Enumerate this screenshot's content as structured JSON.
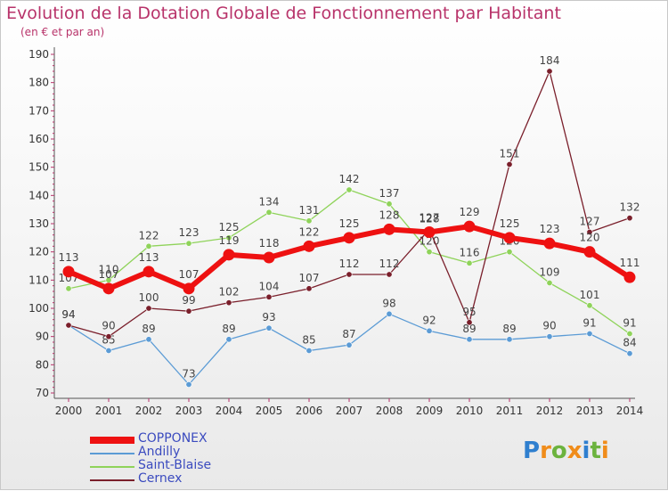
{
  "title": "Evolution de la Dotation Globale de Fonctionnement par Habitant",
  "subtitle": "(en € et par an)",
  "brand": {
    "letters": [
      "P",
      "r",
      "o",
      "x",
      "i",
      "t",
      "i"
    ],
    "colors": [
      "#2f7fcf",
      "#f08c1a",
      "#6cb33e",
      "#f08c1a",
      "#2f7fcf",
      "#6cb33e",
      "#f08c1a"
    ]
  },
  "chart_data": {
    "type": "line",
    "title": "Evolution de la Dotation Globale de Fonctionnement par Habitant",
    "ylabel": "(en € et par an)",
    "xlabel": "",
    "x": [
      "2000",
      "2001",
      "2002",
      "2003",
      "2004",
      "2005",
      "2006",
      "2007",
      "2008",
      "2009",
      "2010",
      "2011",
      "2012",
      "2013",
      "2014"
    ],
    "ylim": [
      70,
      190
    ],
    "yticks": [
      70,
      80,
      90,
      100,
      110,
      120,
      130,
      140,
      150,
      160,
      170,
      180,
      190
    ],
    "series": [
      {
        "name": "COPPONEX",
        "color": "#ee1111",
        "emphasis": true,
        "values": [
          113,
          107,
          113,
          107,
          119,
          118,
          122,
          125,
          128,
          127,
          129,
          125,
          123,
          120,
          111
        ]
      },
      {
        "name": "Andilly",
        "color": "#5b9bd5",
        "emphasis": false,
        "values": [
          94,
          85,
          89,
          73,
          89,
          93,
          85,
          87,
          98,
          92,
          89,
          89,
          90,
          91,
          84
        ]
      },
      {
        "name": "Saint-Blaise",
        "color": "#8fd35a",
        "emphasis": false,
        "values": [
          107,
          110,
          122,
          123,
          125,
          134,
          131,
          142,
          137,
          120,
          116,
          120,
          109,
          101,
          91
        ]
      },
      {
        "name": "Cernex",
        "color": "#7a1f2b",
        "emphasis": false,
        "values": [
          94,
          90,
          100,
          99,
          102,
          104,
          107,
          112,
          112,
          128,
          95,
          151,
          184,
          127,
          132
        ]
      }
    ],
    "legend_position": "bottom-left",
    "grid": false
  }
}
